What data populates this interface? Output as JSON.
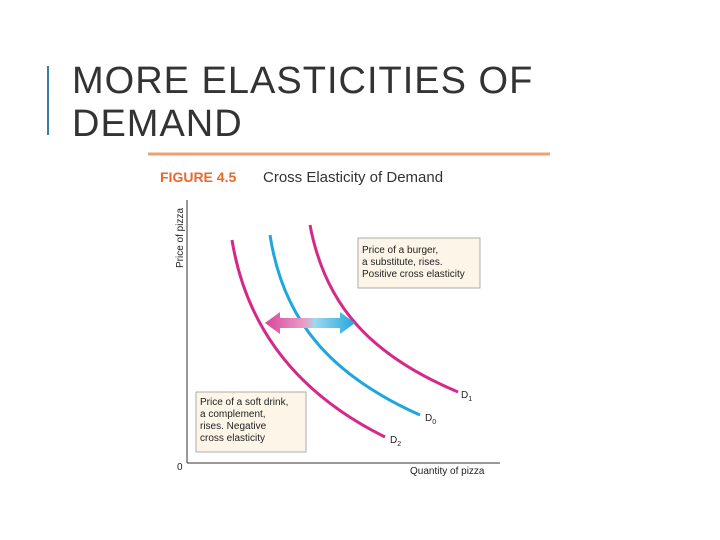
{
  "slide": {
    "title_lines": [
      "MORE ELASTICITIES OF",
      "DEMAND"
    ]
  },
  "figure": {
    "label": "FIGURE 4.5",
    "title": "Cross Elasticity of Demand",
    "y_axis_label": "Price of pizza",
    "x_axis_label": "Quantity of pizza",
    "origin": "0",
    "curves": [
      {
        "main": "D",
        "sub": "1"
      },
      {
        "main": "D",
        "sub": "0"
      },
      {
        "main": "D",
        "sub": "2"
      }
    ],
    "notes": [
      {
        "lines": [
          "Price of a burger,",
          "a substitute, rises.",
          "Positive cross elasticity"
        ]
      },
      {
        "lines": [
          "Price of a soft drink,",
          "a complement,",
          "rises. Negative",
          "cross elasticity"
        ]
      }
    ]
  }
}
